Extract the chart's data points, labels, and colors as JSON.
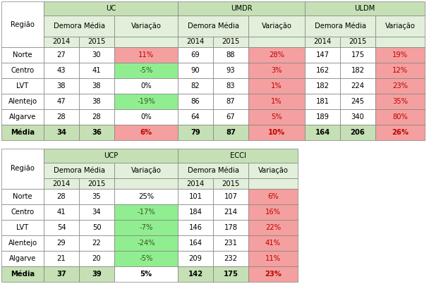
{
  "table1": {
    "rows": [
      [
        "Norte",
        "27",
        "30",
        "11%",
        "69",
        "88",
        "28%",
        "147",
        "175",
        "19%"
      ],
      [
        "Centro",
        "43",
        "41",
        "-5%",
        "90",
        "93",
        "3%",
        "162",
        "182",
        "12%"
      ],
      [
        "LVT",
        "38",
        "38",
        "0%",
        "82",
        "83",
        "1%",
        "182",
        "224",
        "23%"
      ],
      [
        "Alentejo",
        "47",
        "38",
        "-19%",
        "86",
        "87",
        "1%",
        "181",
        "245",
        "35%"
      ],
      [
        "Algarve",
        "28",
        "28",
        "0%",
        "64",
        "67",
        "5%",
        "189",
        "340",
        "80%"
      ],
      [
        "Média",
        "34",
        "36",
        "6%",
        "79",
        "87",
        "10%",
        "164",
        "206",
        "26%"
      ]
    ],
    "uc_var_colors": [
      "#f4a0a0",
      "#90ee90",
      "#ffffff",
      "#90ee90",
      "#ffffff",
      "#f4a0a0"
    ],
    "umdr_var_colors": [
      "#f4a0a0",
      "#f4a0a0",
      "#f4a0a0",
      "#f4a0a0",
      "#f4a0a0",
      "#f4a0a0"
    ],
    "uldm_var_colors": [
      "#f4a0a0",
      "#f4a0a0",
      "#f4a0a0",
      "#f4a0a0",
      "#f4a0a0",
      "#f4a0a0"
    ],
    "uc_var_tcolors": [
      "#c00000",
      "#375623",
      "#000000",
      "#375623",
      "#000000",
      "#c00000"
    ],
    "umdr_var_tcolors": [
      "#c00000",
      "#c00000",
      "#c00000",
      "#c00000",
      "#c00000",
      "#c00000"
    ],
    "uldm_var_tcolors": [
      "#c00000",
      "#c00000",
      "#c00000",
      "#c00000",
      "#c00000",
      "#c00000"
    ]
  },
  "table2": {
    "rows": [
      [
        "Norte",
        "28",
        "35",
        "25%",
        "101",
        "107",
        "6%"
      ],
      [
        "Centro",
        "41",
        "34",
        "-17%",
        "184",
        "214",
        "16%"
      ],
      [
        "LVT",
        "54",
        "50",
        "-7%",
        "146",
        "178",
        "22%"
      ],
      [
        "Alentejo",
        "29",
        "22",
        "-24%",
        "164",
        "231",
        "41%"
      ],
      [
        "Algarve",
        "21",
        "20",
        "-5%",
        "209",
        "232",
        "11%"
      ],
      [
        "Média",
        "37",
        "39",
        "5%",
        "142",
        "175",
        "23%"
      ]
    ],
    "ucp_var_colors": [
      "#ffffff",
      "#90ee90",
      "#90ee90",
      "#90ee90",
      "#90ee90",
      "#ffffff"
    ],
    "ecci_var_colors": [
      "#f4a0a0",
      "#f4a0a0",
      "#f4a0a0",
      "#f4a0a0",
      "#f4a0a0",
      "#f4a0a0"
    ],
    "ucp_var_tcolors": [
      "#000000",
      "#375623",
      "#375623",
      "#375623",
      "#375623",
      "#000000"
    ],
    "ecci_var_tcolors": [
      "#c00000",
      "#c00000",
      "#c00000",
      "#c00000",
      "#c00000",
      "#c00000"
    ]
  },
  "header_bg": "#c5e0b4",
  "subheader_bg": "#e2efda",
  "media_bg": "#c5e0b4",
  "white_cell": "#ffffff",
  "red_cell": "#f4a0a0",
  "green_cell": "#90ee90",
  "border_color": "#7f7f7f",
  "black": "#000000",
  "red_text": "#c00000",
  "green_text": "#375623",
  "fontsize": 7.2
}
